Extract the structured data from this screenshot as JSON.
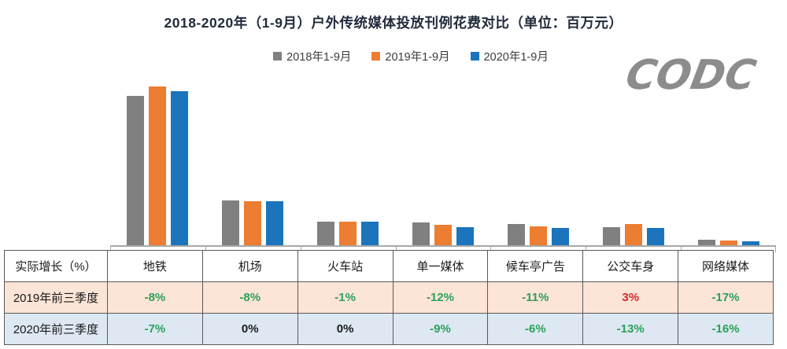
{
  "title": "2018-2020年（1-9月）户外传统媒体投放刊例花费对比（单位：百万元）",
  "logo_text": "CODC",
  "colors": {
    "series_2018": "#808080",
    "series_2019": "#ED7D31",
    "series_2020": "#1B74BC",
    "title_color": "#212B3B",
    "axis_color": "#A8A8A8",
    "logo_color": "#8C8C8C",
    "table_border": "#595959",
    "row_2019_bg": "#FCE4D6",
    "row_2020_bg": "#DDE8F2",
    "value_negative": "#2CA05A",
    "value_positive": "#D9262C",
    "value_zero": "#1A1A1A"
  },
  "chart_data": {
    "type": "bar",
    "title": "2018-2020年（1-9月）户外传统媒体投放刊例花费对比（单位：百万元）",
    "unit": "百万元",
    "categories": [
      "地铁",
      "机场",
      "火车站",
      "单一媒体",
      "候车亭广告",
      "公交车身",
      "网络媒体"
    ],
    "series": [
      {
        "name": "2018年1-9月",
        "color": "#808080",
        "values": [
          94,
          28,
          15,
          14.4,
          13.4,
          11.4,
          3.5
        ]
      },
      {
        "name": "2019年1-9月",
        "color": "#ED7D31",
        "values": [
          100,
          27.7,
          15,
          12.9,
          11.9,
          13.4,
          3.0
        ]
      },
      {
        "name": "2020年1-9月",
        "color": "#1B74BC",
        "values": [
          97,
          27.7,
          15,
          11.4,
          10.9,
          10.9,
          2.5
        ]
      }
    ],
    "value_axis": {
      "visible": false,
      "scale": "relative, tallest bar (2019 地铁) = 100",
      "ylim": [
        0,
        105
      ]
    },
    "legend_position": "top-center",
    "grid": false
  },
  "legend": [
    "2018年1-9月",
    "2019年1-9月",
    "2020年1-9月"
  ],
  "table": {
    "header": [
      "实际增长（%）",
      "地铁",
      "机场",
      "火车站",
      "单一媒体",
      "候车亭广告",
      "公交车身",
      "网络媒体"
    ],
    "rows": [
      {
        "label": "2019年前三季度",
        "values": [
          "-8%",
          "-8%",
          "-1%",
          "-12%",
          "-11%",
          "3%",
          "-17%"
        ]
      },
      {
        "label": "2020年前三季度",
        "values": [
          "-7%",
          "0%",
          "0%",
          "-9%",
          "-6%",
          "-13%",
          "-16%"
        ]
      }
    ]
  }
}
